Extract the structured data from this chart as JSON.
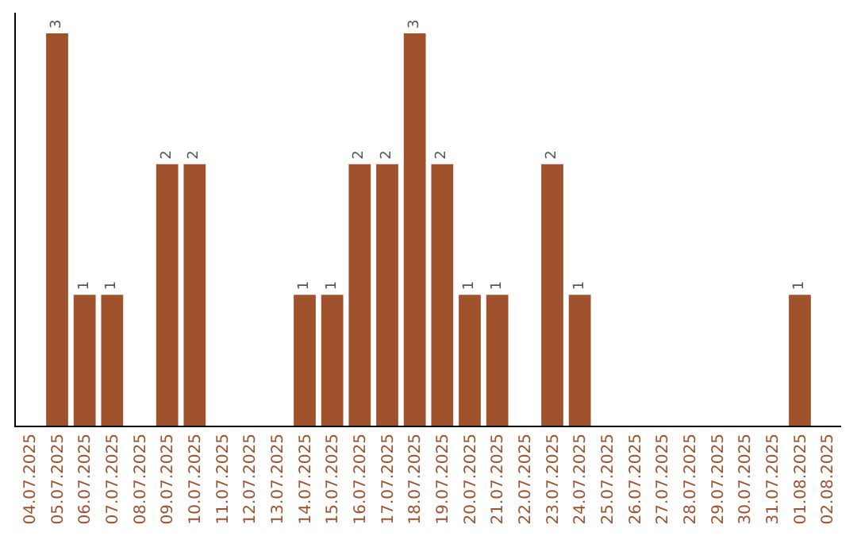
{
  "chart_data": {
    "type": "bar",
    "categories": [
      "04.07.2025",
      "05.07.2025",
      "06.07.2025",
      "07.07.2025",
      "08.07.2025",
      "09.07.2025",
      "10.07.2025",
      "11.07.2025",
      "12.07.2025",
      "13.07.2025",
      "14.07.2025",
      "15.07.2025",
      "16.07.2025",
      "17.07.2025",
      "18.07.2025",
      "19.07.2025",
      "20.07.2025",
      "21.07.2025",
      "22.07.2025",
      "23.07.2025",
      "24.07.2025",
      "25.07.2025",
      "26.07.2025",
      "27.07.2025",
      "28.07.2025",
      "29.07.2025",
      "30.07.2025",
      "31.07.2025",
      "01.08.2025",
      "02.08.2025"
    ],
    "values": [
      0,
      3,
      1,
      1,
      0,
      2,
      2,
      0,
      0,
      0,
      1,
      1,
      2,
      2,
      3,
      2,
      1,
      1,
      0,
      2,
      1,
      0,
      0,
      0,
      0,
      0,
      0,
      0,
      1,
      0
    ],
    "value_labels": [
      null,
      "3",
      "1",
      "1",
      null,
      "2",
      "2",
      null,
      null,
      null,
      "1",
      "1",
      "2",
      "2",
      "3",
      "2",
      "1",
      "1",
      null,
      "2",
      "1",
      null,
      null,
      null,
      null,
      null,
      null,
      null,
      "1",
      null
    ],
    "color": "#a0522d"
  }
}
